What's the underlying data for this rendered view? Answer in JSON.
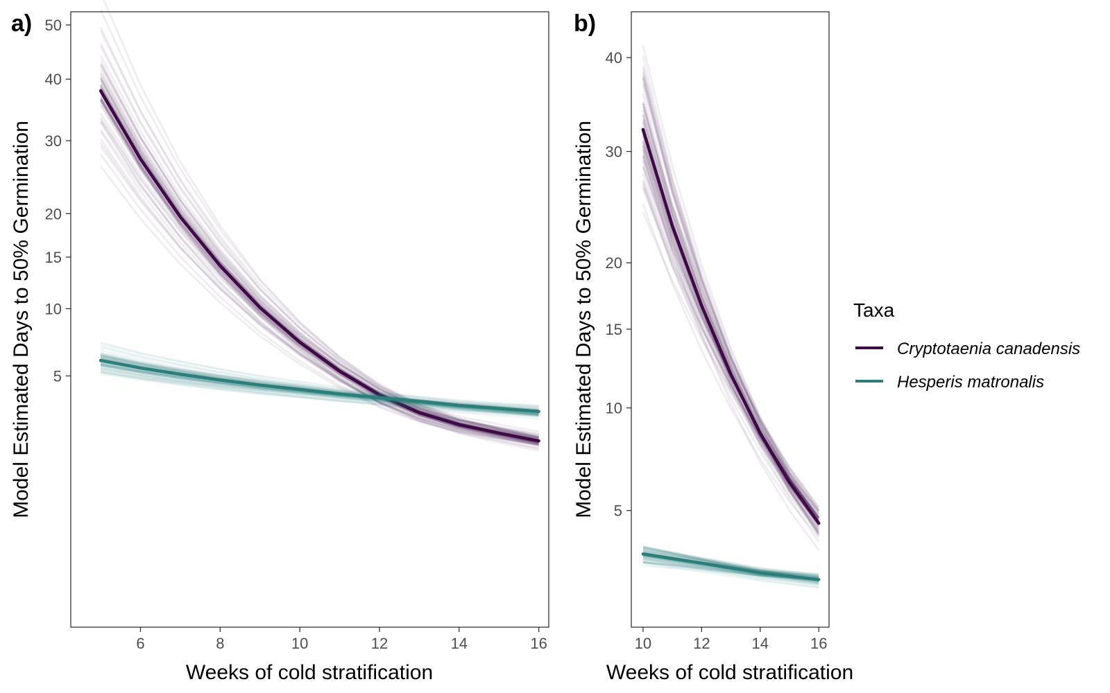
{
  "colors": {
    "cryptotaenia": "#3d0a45",
    "hesperis": "#2a7f7a",
    "panel_border": "#333333",
    "tick": "#333333"
  },
  "legend": {
    "title": "Taxa",
    "position": "right",
    "entries": [
      {
        "label": "Cryptotaenia canadensis",
        "color": "#3d0a45"
      },
      {
        "label": "Hesperis matronalis",
        "color": "#2a7f7a"
      }
    ]
  },
  "chart_data": [
    {
      "panel_label": "a)",
      "type": "line",
      "xlabel": "Weeks of cold stratification",
      "ylabel": "Model Estimated Days to 50% Germination",
      "xlim": [
        4.25,
        16.25
      ],
      "ylim": [
        -1.5,
        52.6
      ],
      "y_scale": "square-root",
      "x_ticks": [
        6,
        8,
        10,
        12,
        14,
        16
      ],
      "y_ticks": [
        5,
        10,
        15,
        20,
        30,
        40,
        50
      ],
      "grid": false,
      "x": [
        5,
        6,
        7,
        8,
        9,
        10,
        11,
        12,
        13,
        14,
        15,
        16
      ],
      "series": [
        {
          "name": "Cryptotaenia canadensis",
          "color": "#3d0a45",
          "values": [
            38,
            27.3,
            19.6,
            14.1,
            10.1,
            7.3,
            5.3,
            3.9,
            3.0,
            2.45,
            2.1,
            1.8
          ],
          "band_spread": 0.14
        },
        {
          "name": "Hesperis matronalis",
          "color": "#2a7f7a",
          "values": [
            6.0,
            5.5,
            5.1,
            4.75,
            4.45,
            4.2,
            3.95,
            3.75,
            3.55,
            3.35,
            3.2,
            3.05
          ],
          "band_spread": 0.07
        }
      ]
    },
    {
      "panel_label": "b)",
      "type": "line",
      "xlabel": "Weeks of cold stratification",
      "ylabel": "Model Estimated Days to 50% Germination",
      "xlim": [
        9.6,
        16.35
      ],
      "ylim": [
        1.4,
        45.4
      ],
      "y_scale": "square-root",
      "x_ticks": [
        10,
        12,
        14,
        16
      ],
      "y_ticks": [
        5,
        10,
        15,
        20,
        30,
        40
      ],
      "grid": false,
      "x": [
        10,
        11,
        12,
        13,
        14,
        15,
        16
      ],
      "series": [
        {
          "name": "Cryptotaenia canadensis",
          "color": "#3d0a45",
          "values": [
            32.2,
            23.1,
            16.7,
            12.0,
            8.6,
            6.2,
            4.5
          ],
          "band_spread": 0.13
        },
        {
          "name": "Hesperis matronalis",
          "color": "#2a7f7a",
          "values": [
            3.4,
            3.25,
            3.1,
            2.95,
            2.8,
            2.7,
            2.6
          ],
          "band_spread": 0.05
        }
      ]
    }
  ]
}
